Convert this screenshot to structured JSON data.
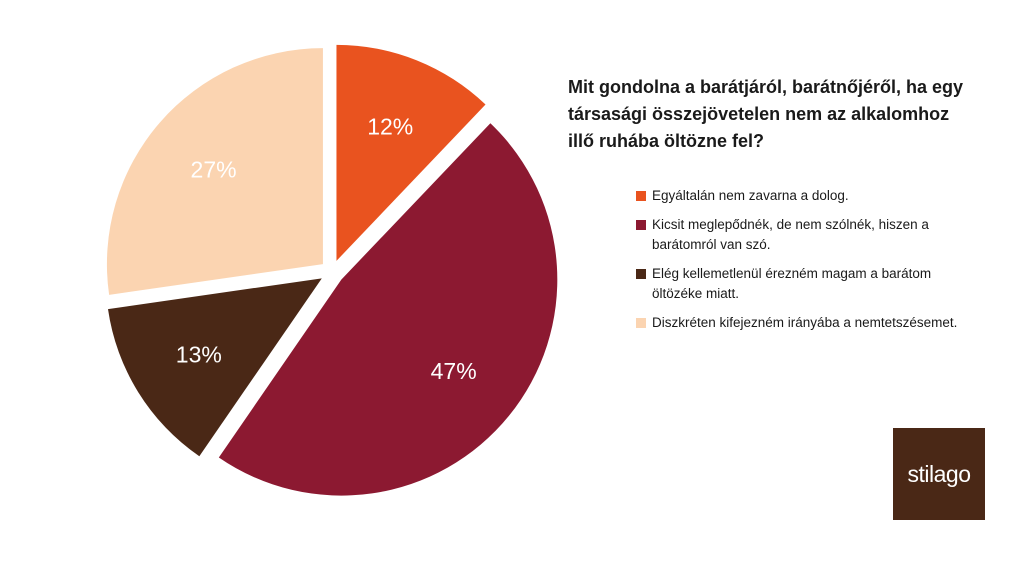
{
  "chart_data": {
    "type": "pie",
    "title": "Mit gondolna a barátjáról, barátnőjéről, ha egy társasági összejövetelen nem az alkalomhoz illő ruhába öltözne fel?",
    "slices": [
      {
        "label": "Egyáltalán nem zavarna a dolog.",
        "value": 12,
        "display": "12%",
        "color": "#e9531f",
        "text_color": "#ffffff"
      },
      {
        "label": "Kicsit meglepődnék,  de nem szólnék,  hiszen a barátomról van szó.",
        "value": 47,
        "display": "47%",
        "color": "#8c1931",
        "text_color": "#ffffff"
      },
      {
        "label": "Elég kellemetlenül  érezném  magam a barátom öltözéke miatt.",
        "value": 13,
        "display": "13%",
        "color": "#4a2816",
        "text_color": "#ffffff"
      },
      {
        "label": "Diszkréten kifejezném  irányába a nemtetszésemet.",
        "value": 27,
        "display": "27%",
        "color": "#fbd4b1",
        "text_color": "#ffffff"
      }
    ],
    "legend_position": "right"
  },
  "logo": {
    "text": "stilago",
    "color": "#4a2816"
  }
}
